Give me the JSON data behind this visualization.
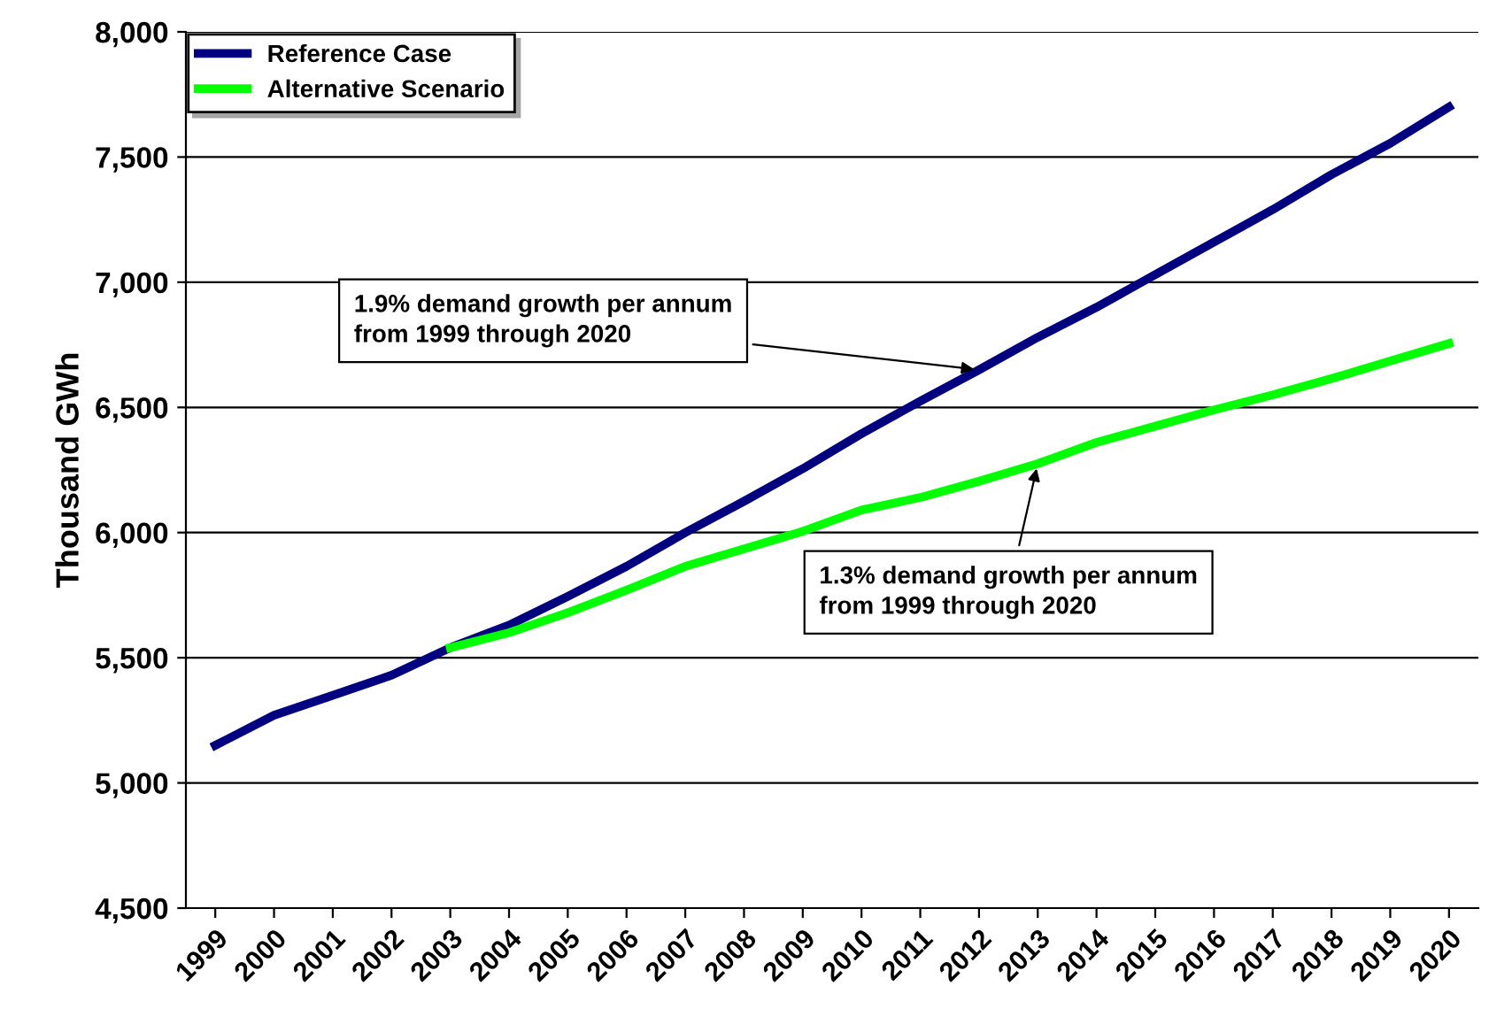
{
  "chart_data": {
    "type": "line",
    "ylabel": "Thousand GWh",
    "categories": [
      "1999",
      "2000",
      "2001",
      "2002",
      "2003",
      "2004",
      "2005",
      "2006",
      "2007",
      "2008",
      "2009",
      "2010",
      "2011",
      "2012",
      "2013",
      "2014",
      "2015",
      "2016",
      "2017",
      "2018",
      "2019",
      "2020"
    ],
    "series": [
      {
        "name": "Reference Case",
        "color": "#000080",
        "values": [
          5150,
          5270,
          5350,
          5430,
          5540,
          5630,
          5745,
          5865,
          6000,
          6125,
          6255,
          6395,
          6525,
          6650,
          6780,
          6900,
          7030,
          7160,
          7290,
          7430,
          7555,
          7700
        ]
      },
      {
        "name": "Alternative Scenario",
        "color": "#00ff00",
        "values": [
          null,
          null,
          null,
          null,
          5540,
          5600,
          5680,
          5770,
          5865,
          5935,
          6005,
          6090,
          6140,
          6205,
          6275,
          6360,
          6425,
          6490,
          6550,
          6615,
          6685,
          6755
        ]
      }
    ],
    "ylim": [
      4500,
      8000
    ],
    "yticks": [
      {
        "value": 4500,
        "label": "4,500"
      },
      {
        "value": 5000,
        "label": "5,000"
      },
      {
        "value": 5500,
        "label": "5,500"
      },
      {
        "value": 6000,
        "label": "6,000"
      },
      {
        "value": 6500,
        "label": "6,500"
      },
      {
        "value": 7000,
        "label": "7,000"
      },
      {
        "value": 7500,
        "label": "7,500"
      },
      {
        "value": 8000,
        "label": "8,000"
      }
    ],
    "grid": "y",
    "legend": "top left",
    "marker": "none",
    "line_style": "solid",
    "annotations": [
      {
        "text": "1.9% demand growth per annum\nfrom 1999 through 2020",
        "x": "2012",
        "y": 6650
      },
      {
        "text": "1.3% demand growth per annum\nfrom 1999 through 2020",
        "x": "2013",
        "y": 6275
      }
    ]
  }
}
